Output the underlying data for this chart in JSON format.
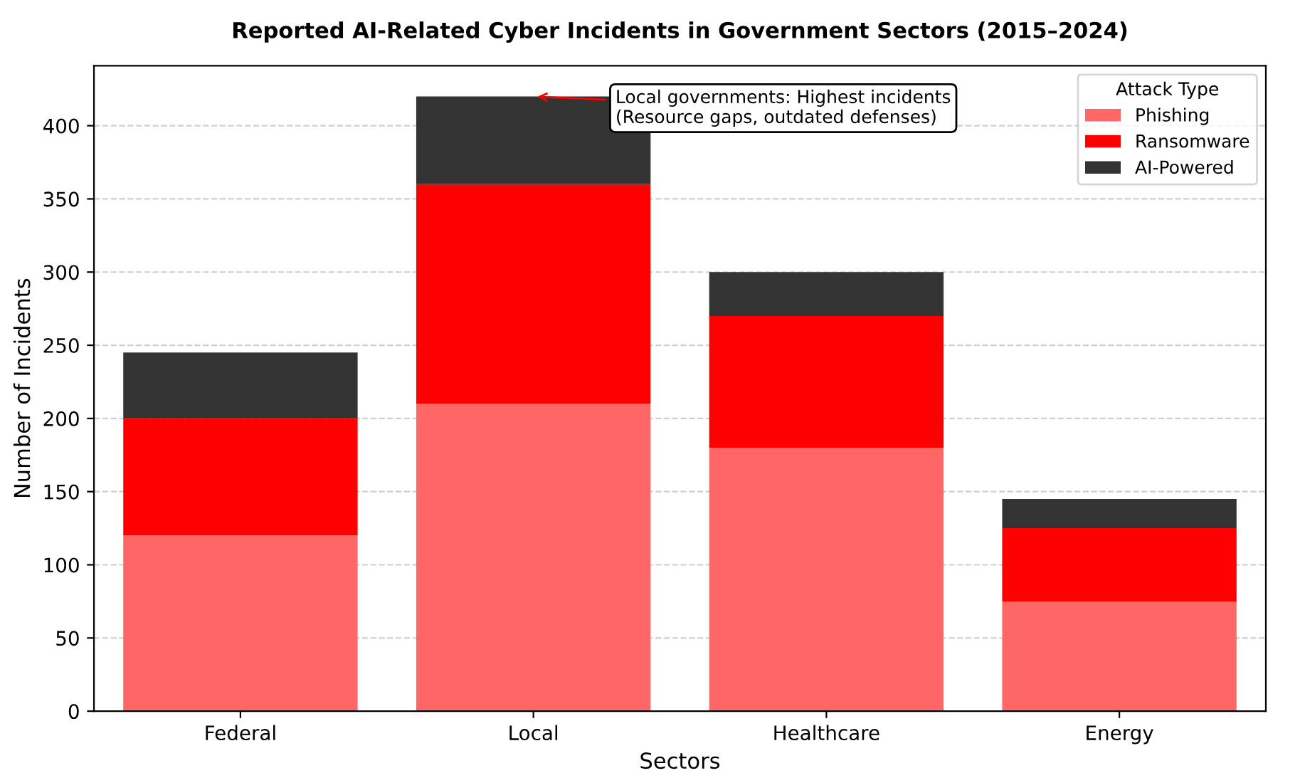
{
  "chart_data": {
    "type": "bar",
    "title": "Reported AI-Related Cyber Incidents in Government Sectors (2015–2024)",
    "xlabel": "Sectors",
    "ylabel": "Number of Incidents",
    "legend_title": "Attack Type",
    "categories": [
      "Federal",
      "Local",
      "Healthcare",
      "Energy"
    ],
    "series": [
      {
        "name": "Phishing",
        "color": "#ff6666",
        "values": [
          120,
          210,
          180,
          75
        ]
      },
      {
        "name": "Ransomware",
        "color": "#ff0000",
        "values": [
          80,
          150,
          90,
          50
        ]
      },
      {
        "name": "AI-Powered",
        "color": "#333333",
        "values": [
          45,
          60,
          30,
          20
        ]
      }
    ],
    "stacked": true,
    "ylim": [
      0,
      441
    ],
    "yticks": [
      0,
      50,
      100,
      150,
      200,
      250,
      300,
      350,
      400
    ],
    "grid": "y",
    "legend": "top right",
    "annotations": [
      "Local governments: Highest incidents\n(Resource gaps, outdated defenses)"
    ]
  }
}
